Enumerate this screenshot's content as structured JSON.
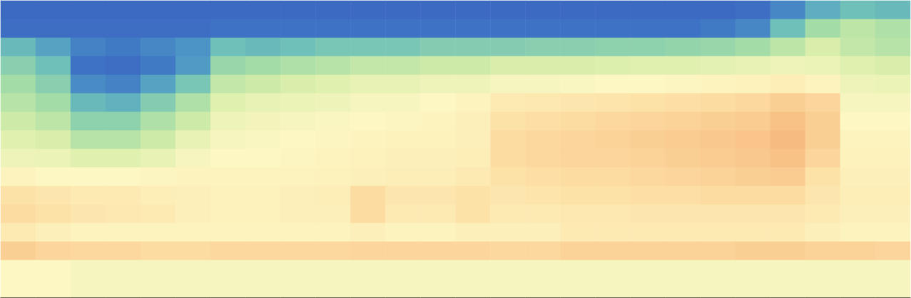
{
  "chart_data": {
    "type": "heatmap",
    "tick_labels": false,
    "grid": false,
    "color_range": [
      0,
      100
    ],
    "colors": [
      "#3a5fc0",
      "#3e72c4",
      "#4f9bc6",
      "#6fc0b8",
      "#a3dca6",
      "#d8eeaa",
      "#fdf7c4",
      "#fde2a8",
      "#f8c287",
      "#f0a062",
      "#e07a40"
    ],
    "cells": [
      [
        5,
        5,
        5,
        5,
        5,
        5,
        5,
        5,
        5,
        5,
        5,
        5,
        5,
        5,
        5,
        5,
        5,
        5,
        5,
        5,
        5,
        8,
        15,
        25,
        30,
        28
      ],
      [
        8,
        8,
        8,
        8,
        8,
        8,
        10,
        10,
        10,
        10,
        10,
        10,
        10,
        10,
        10,
        10,
        10,
        10,
        10,
        10,
        12,
        15,
        30,
        40,
        45,
        42
      ],
      [
        28,
        22,
        14,
        12,
        15,
        18,
        30,
        28,
        30,
        32,
        32,
        32,
        34,
        34,
        34,
        35,
        35,
        36,
        36,
        37,
        38,
        40,
        45,
        50,
        46,
        44
      ],
      [
        35,
        30,
        10,
        8,
        12,
        20,
        38,
        40,
        42,
        44,
        46,
        46,
        48,
        48,
        50,
        50,
        50,
        51,
        52,
        52,
        53,
        54,
        56,
        55,
        52,
        50
      ],
      [
        40,
        35,
        16,
        14,
        22,
        32,
        46,
        48,
        50,
        52,
        54,
        54,
        56,
        56,
        58,
        58,
        59,
        60,
        60,
        61,
        62,
        63,
        65,
        62,
        56,
        55
      ],
      [
        44,
        40,
        28,
        26,
        34,
        42,
        52,
        54,
        55,
        56,
        58,
        58,
        60,
        62,
        66,
        67,
        68,
        69,
        70,
        71,
        72,
        73,
        76,
        74,
        58,
        58
      ],
      [
        48,
        45,
        36,
        36,
        42,
        48,
        56,
        57,
        58,
        59,
        60,
        61,
        62,
        64,
        70,
        71,
        72,
        73,
        74,
        75,
        76,
        77,
        80,
        76,
        60,
        60
      ],
      [
        52,
        50,
        44,
        44,
        48,
        54,
        58,
        59,
        60,
        61,
        62,
        63,
        63,
        64,
        72,
        73,
        74,
        75,
        76,
        77,
        78,
        79,
        82,
        76,
        62,
        62
      ],
      [
        56,
        55,
        52,
        52,
        54,
        58,
        60,
        60,
        61,
        62,
        63,
        64,
        64,
        65,
        72,
        73,
        74,
        74,
        75,
        76,
        77,
        78,
        80,
        74,
        63,
        63
      ],
      [
        62,
        60,
        60,
        60,
        61,
        62,
        62,
        62,
        62,
        63,
        64,
        65,
        65,
        66,
        70,
        71,
        72,
        72,
        73,
        74,
        75,
        76,
        77,
        70,
        64,
        64
      ],
      [
        70,
        68,
        66,
        66,
        65,
        64,
        63,
        63,
        64,
        65,
        72,
        68,
        68,
        70,
        68,
        69,
        70,
        70,
        71,
        71,
        72,
        72,
        72,
        68,
        65,
        65
      ],
      [
        72,
        70,
        68,
        67,
        66,
        64,
        63,
        63,
        64,
        64,
        72,
        66,
        66,
        70,
        66,
        66,
        67,
        67,
        68,
        68,
        68,
        68,
        68,
        66,
        64,
        64
      ],
      [
        66,
        64,
        62,
        62,
        62,
        62,
        62,
        62,
        62,
        62,
        64,
        62,
        62,
        64,
        64,
        64,
        66,
        66,
        66,
        66,
        66,
        66,
        66,
        64,
        62,
        62
      ],
      [
        76,
        74,
        73,
        73,
        72,
        72,
        73,
        73,
        73,
        73,
        74,
        74,
        74,
        74,
        73,
        73,
        75,
        75,
        75,
        75,
        75,
        76,
        76,
        75,
        75,
        74
      ],
      [
        60,
        60,
        58,
        58,
        58,
        58,
        58,
        58,
        58,
        58,
        58,
        58,
        58,
        58,
        58,
        58,
        58,
        58,
        58,
        58,
        58,
        58,
        58,
        58,
        58,
        58
      ],
      [
        60,
        60,
        58,
        58,
        58,
        58,
        58,
        58,
        58,
        58,
        58,
        58,
        58,
        58,
        58,
        58,
        58,
        58,
        58,
        58,
        58,
        58,
        58,
        58,
        58,
        58
      ]
    ]
  }
}
